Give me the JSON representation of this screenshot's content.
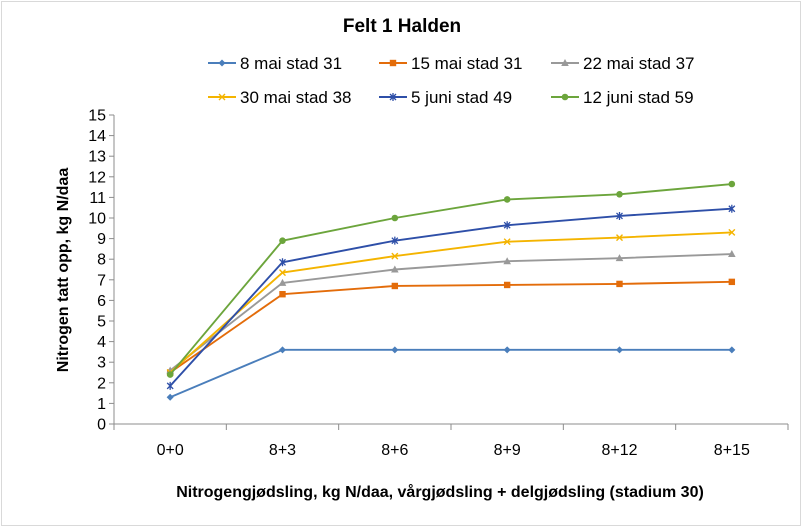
{
  "chart_data": {
    "type": "line",
    "title": "Felt 1 Halden",
    "xlabel": "Nitrogengjødsling, kg N/daa, vårgjødsling + delgjødsling (stadium 30)",
    "ylabel": "Nitrogen tatt opp, kg N/daa",
    "categories": [
      "0+0",
      "8+3",
      "8+6",
      "8+9",
      "8+12",
      "8+15"
    ],
    "ylim": [
      0,
      15
    ],
    "yticks": [
      0,
      1,
      2,
      3,
      4,
      5,
      6,
      7,
      8,
      9,
      10,
      11,
      12,
      13,
      14,
      15
    ],
    "grid": false,
    "legend_position": "top",
    "series": [
      {
        "name": "8 mai stad 31",
        "color": "#4a7ebb",
        "marker": "diamond",
        "values": [
          1.3,
          3.6,
          3.6,
          3.6,
          3.6,
          3.6
        ]
      },
      {
        "name": "15 mai stad 31",
        "color": "#e36c0a",
        "marker": "square",
        "values": [
          2.5,
          6.3,
          6.7,
          6.75,
          6.8,
          6.9
        ]
      },
      {
        "name": "22 mai stad 37",
        "color": "#999999",
        "marker": "triangle",
        "values": [
          2.6,
          6.85,
          7.5,
          7.9,
          8.05,
          8.25
        ]
      },
      {
        "name": "30 mai stad 38",
        "color": "#f4b400",
        "marker": "x",
        "values": [
          2.5,
          7.35,
          8.15,
          8.85,
          9.05,
          9.3
        ]
      },
      {
        "name": "5 juni stad 49",
        "color": "#2e4fa8",
        "marker": "asterisk",
        "values": [
          1.85,
          7.85,
          8.9,
          9.65,
          10.1,
          10.45
        ]
      },
      {
        "name": "12 juni stad 59",
        "color": "#6ca53c",
        "marker": "circle",
        "values": [
          2.4,
          8.9,
          10.0,
          10.9,
          11.15,
          11.65
        ]
      }
    ]
  }
}
